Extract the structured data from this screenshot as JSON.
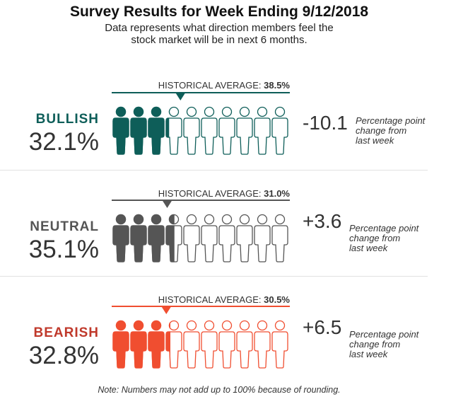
{
  "title": "Survey Results for Week Ending 9/12/2018",
  "subtitle_line1": "Data represents what direction members feel the",
  "subtitle_line2": "stock market will be in next 6 months.",
  "historical_label": "HISTORICAL AVERAGE:",
  "change_text_line1": "Percentage point",
  "change_text_line2": "change from",
  "change_text_line3": "last week",
  "note": "Note: Numbers may not add up to 100% because of rounding.",
  "chart_data": {
    "type": "pictogram",
    "title": "Survey Results for Week Ending 9/12/2018",
    "icons_total": 10,
    "series": [
      {
        "name": "BULLISH",
        "value_label": "32.1%",
        "value": 32.1,
        "historical_label": "38.5%",
        "historical": 38.5,
        "change_label": "-10.1",
        "change": -10.1,
        "color": "#0e5e59",
        "label_color": "#0e5e59"
      },
      {
        "name": "NEUTRAL",
        "value_label": "35.1%",
        "value": 35.1,
        "historical_label": "31.0%",
        "historical": 31.0,
        "change_label": "+3.6",
        "change": 3.6,
        "color": "#555555",
        "label_color": "#555555"
      },
      {
        "name": "BEARISH",
        "value_label": "32.8%",
        "value": 32.8,
        "historical_label": "30.5%",
        "historical": 30.5,
        "change_label": "+6.5",
        "change": 6.5,
        "color": "#f04e30",
        "label_color": "#c0392b"
      }
    ]
  }
}
